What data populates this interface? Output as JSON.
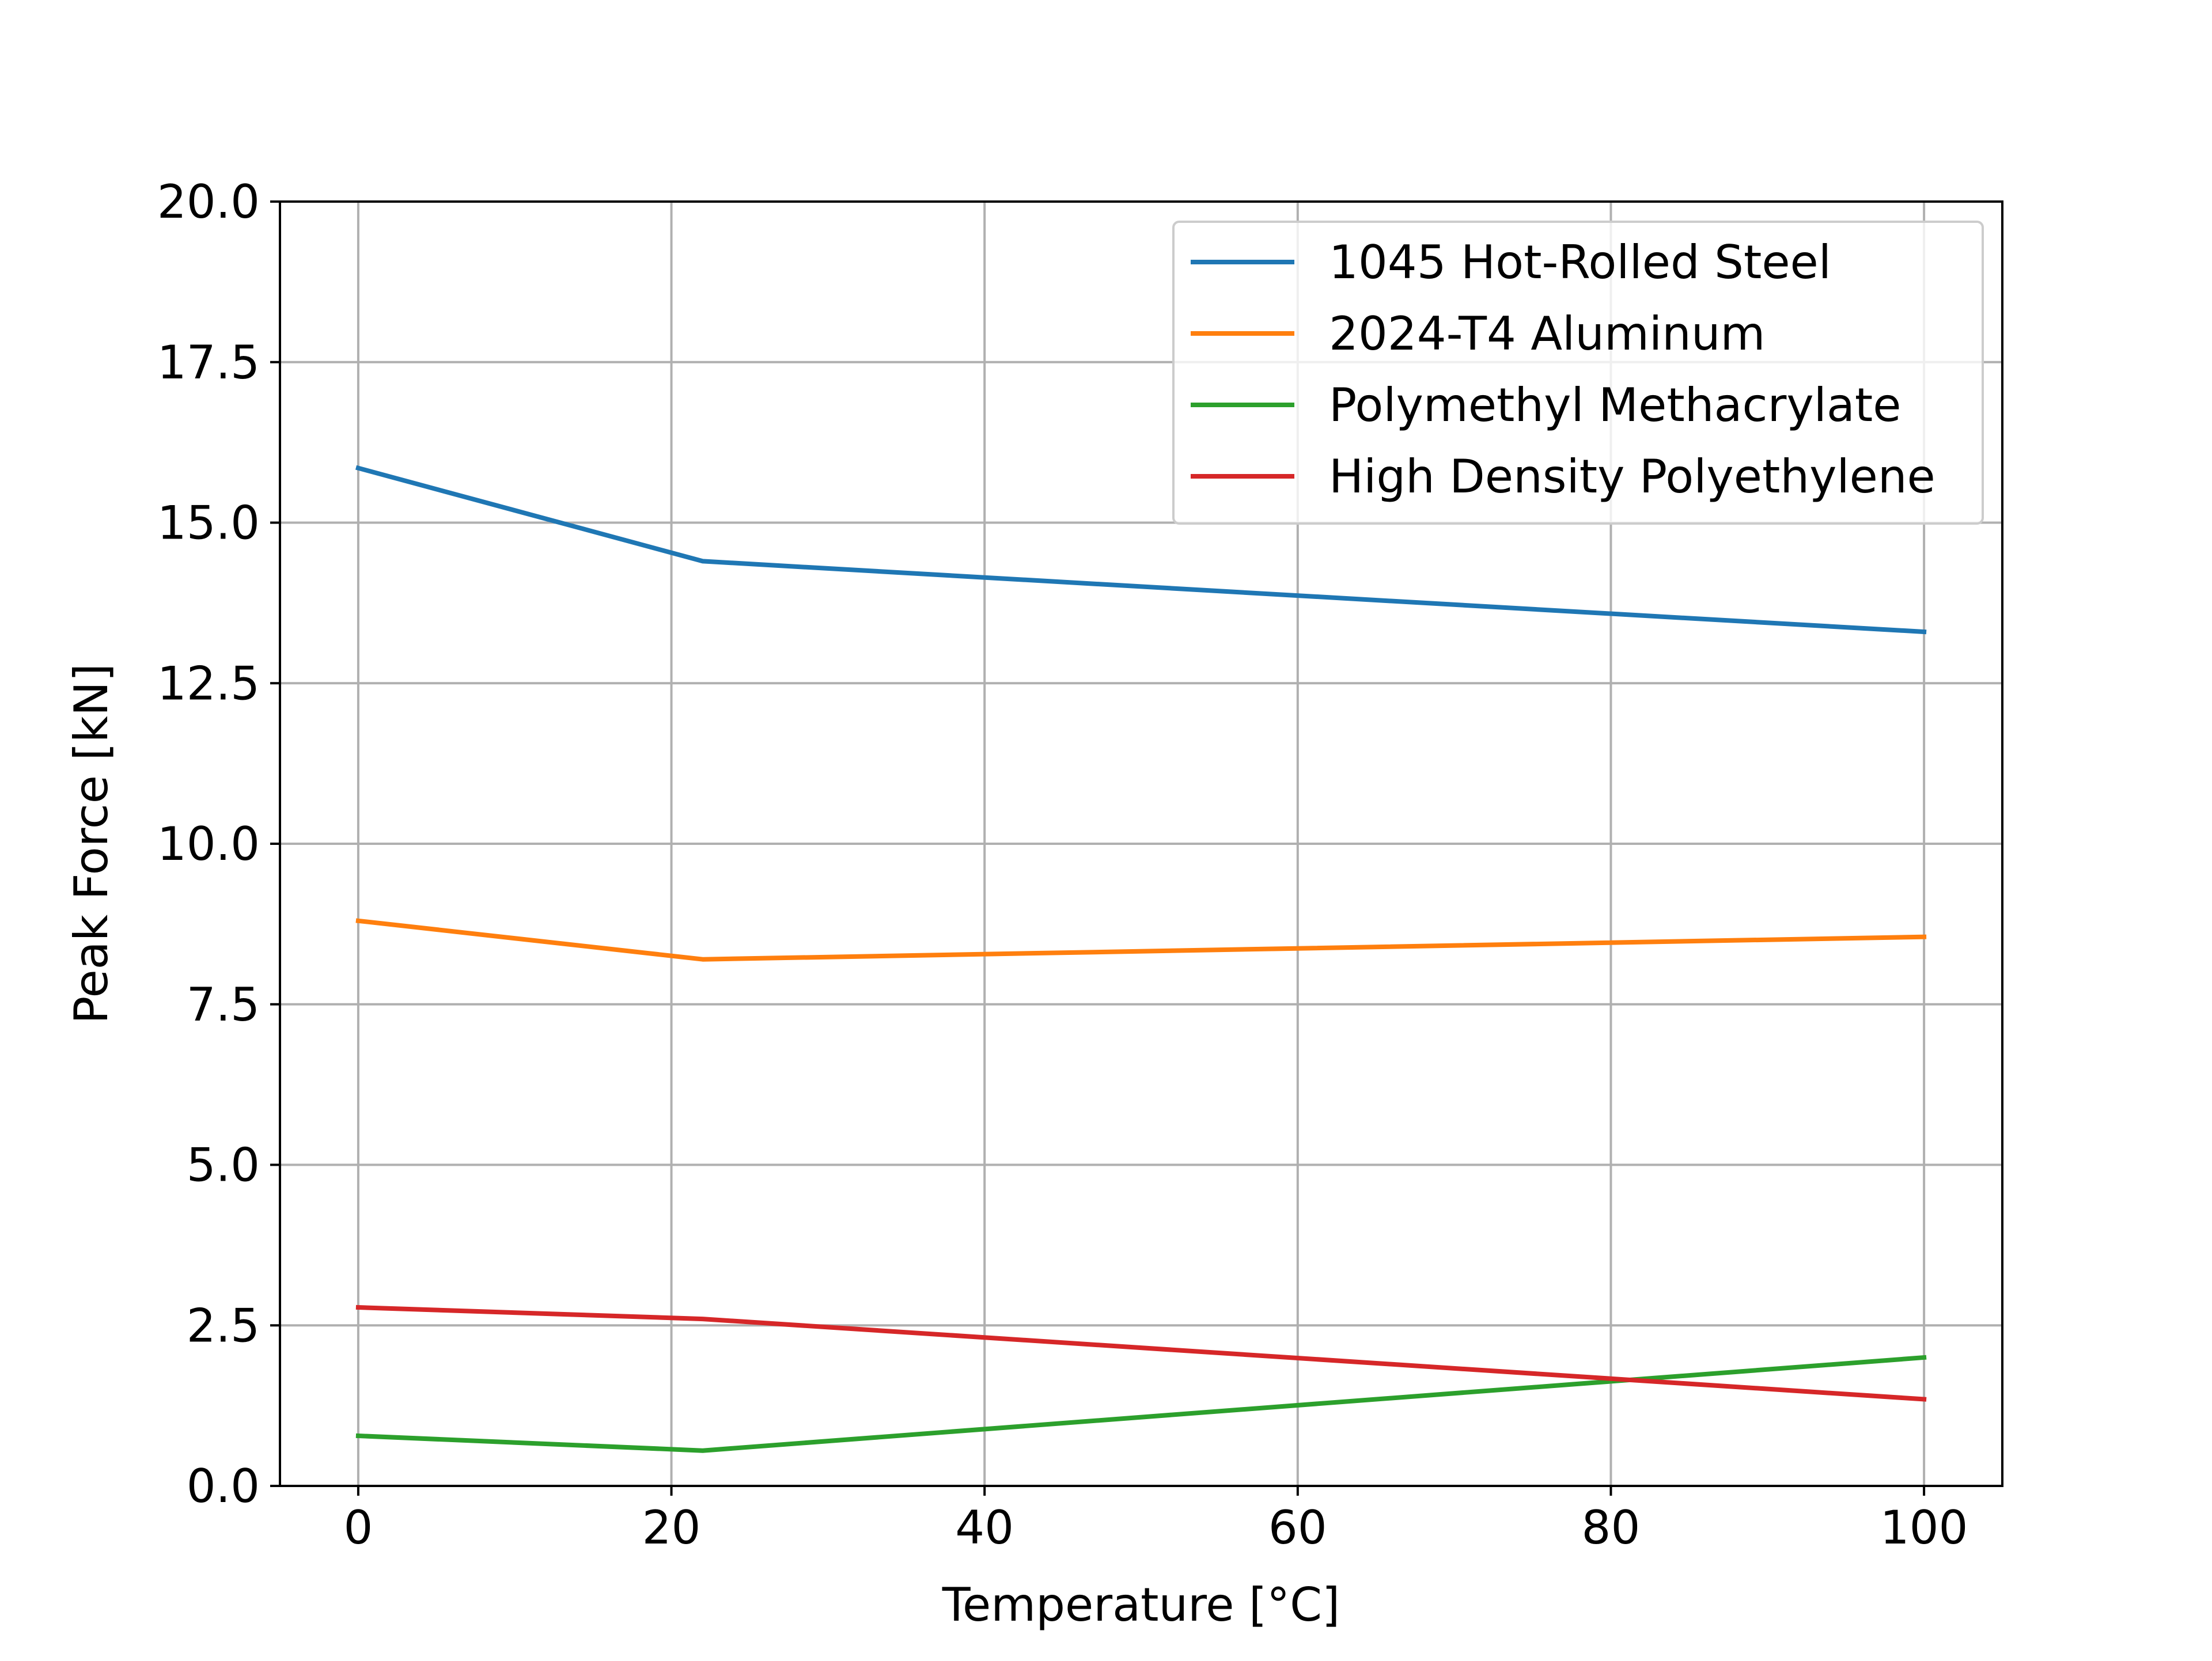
{
  "chart_data": {
    "type": "line",
    "title": "",
    "xlabel": "Temperature [°C]",
    "ylabel": "Peak Force [kN]",
    "xlim": [
      -5,
      105
    ],
    "ylim": [
      0,
      20
    ],
    "xticks": [
      0,
      20,
      40,
      60,
      80,
      100
    ],
    "yticks": [
      0.0,
      2.5,
      5.0,
      7.5,
      10.0,
      12.5,
      15.0,
      17.5,
      20.0
    ],
    "xtick_labels": [
      "0",
      "20",
      "40",
      "60",
      "80",
      "100"
    ],
    "ytick_labels": [
      "0.0",
      "2.5",
      "5.0",
      "7.5",
      "10.0",
      "12.5",
      "15.0",
      "17.5",
      "20.0"
    ],
    "grid": true,
    "legend_position": "top-right",
    "x": [
      0,
      22,
      100
    ],
    "series": [
      {
        "name": "1045 Hot-Rolled Steel",
        "color": "#1f77b4",
        "values": [
          15.85,
          14.4,
          13.3
        ]
      },
      {
        "name": "2024-T4 Aluminum",
        "color": "#ff7f0e",
        "values": [
          8.8,
          8.2,
          8.55
        ]
      },
      {
        "name": "Polymethyl Methacrylate",
        "color": "#2ca02c",
        "values": [
          0.78,
          0.55,
          2.0
        ]
      },
      {
        "name": "High Density Polyethylene",
        "color": "#d62728",
        "values": [
          2.78,
          2.6,
          1.35
        ]
      }
    ]
  }
}
